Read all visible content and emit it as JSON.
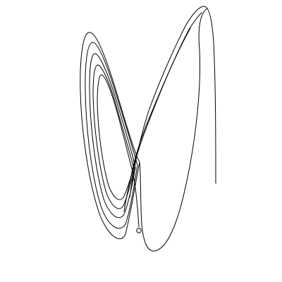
{
  "figure": {
    "background_color": "#ffffff",
    "line_color": "#000000",
    "marker_color": "#000000",
    "marker_fill": "#ffffff"
  }
}
